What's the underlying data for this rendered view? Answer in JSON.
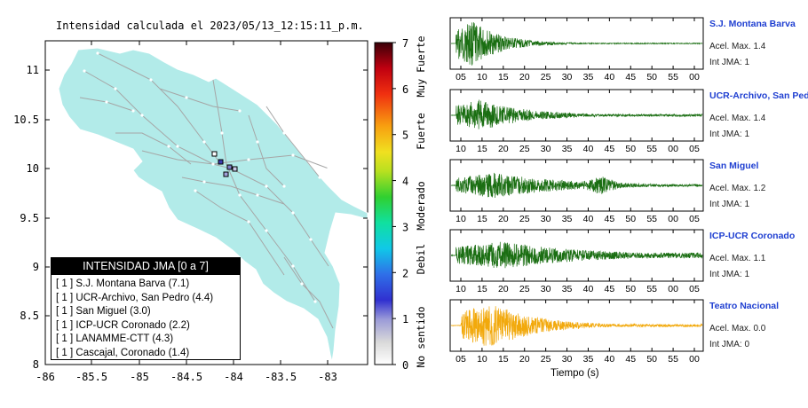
{
  "map": {
    "title": "Intensidad calculada el 2023/05/13_12:15:11_p.m.",
    "x_ticks": [
      "-86",
      "-85.5",
      "-85",
      "-84.5",
      "-84",
      "-83.5",
      "-83"
    ],
    "y_ticks": [
      "11",
      "10.5",
      "10",
      "9.5",
      "9",
      "8.5",
      "8"
    ],
    "land_color": "#b2ebe9",
    "xlim": [
      -86,
      -82.8
    ],
    "ylim": [
      8,
      11.3
    ]
  },
  "legend": {
    "title": "INTENSIDAD JMA [0 a 7]",
    "items": [
      {
        "prefix": "[ 1 ]",
        "label": "S.J. Montana Barva (7.1)"
      },
      {
        "prefix": "[ 1 ]",
        "label": "UCR-Archivo, San Pedro (4.4)"
      },
      {
        "prefix": "[ 1 ]",
        "label": "San Miguel (3.0)"
      },
      {
        "prefix": "[ 1 ]",
        "label": "ICP-UCR Coronado (2.2)"
      },
      {
        "prefix": "[ 1 ]",
        "label": "LANAMME-CTT (4.3)"
      },
      {
        "prefix": "[ 1 ]",
        "label": "Cascajal, Coronado (1.4)"
      }
    ]
  },
  "colorbar": {
    "ticks": [
      "7",
      "6",
      "5",
      "4",
      "3",
      "2",
      "1",
      "0"
    ],
    "categories": [
      "Muy Fuerte",
      "Fuerte",
      "Moderado",
      "Debil",
      "No sentido"
    ]
  },
  "waveforms": {
    "xlabel": "Tiempo (s)",
    "stations": [
      {
        "name": "S.J. Montana Barva",
        "accel": "Acel. Max. 1.4",
        "jma": "Int JMA: 1",
        "color": "#1a6e12",
        "ticks": [
          "05",
          "10",
          "15",
          "20",
          "25",
          "30",
          "35",
          "40",
          "45",
          "50",
          "55",
          "00"
        ]
      },
      {
        "name": "UCR-Archivo, San Pedro",
        "accel": "Acel. Max. 1.4",
        "jma": "Int JMA: 1",
        "color": "#1a6e12",
        "ticks": [
          "10",
          "15",
          "20",
          "25",
          "30",
          "35",
          "40",
          "45",
          "50",
          "55",
          "00",
          "05"
        ]
      },
      {
        "name": "San Miguel",
        "accel": "Acel. Max. 1.2",
        "jma": "Int JMA: 1",
        "color": "#1a6e12",
        "ticks": [
          "10",
          "15",
          "20",
          "25",
          "30",
          "35",
          "40",
          "45",
          "50",
          "55",
          "00",
          "05"
        ]
      },
      {
        "name": "ICP-UCR Coronado",
        "accel": "Acel. Max. 1.1",
        "jma": "Int JMA: 1",
        "color": "#1a6e12",
        "ticks": [
          "10",
          "15",
          "20",
          "25",
          "30",
          "35",
          "40",
          "45",
          "50",
          "55",
          "00",
          "05"
        ]
      },
      {
        "name": "Teatro Nacional",
        "accel": "Acel. Max. 0.0",
        "jma": "Int JMA: 0",
        "color": "#f2a90c",
        "ticks": [
          "05",
          "10",
          "15",
          "20",
          "25",
          "30",
          "35",
          "40",
          "45",
          "50",
          "55",
          "00"
        ]
      }
    ]
  }
}
